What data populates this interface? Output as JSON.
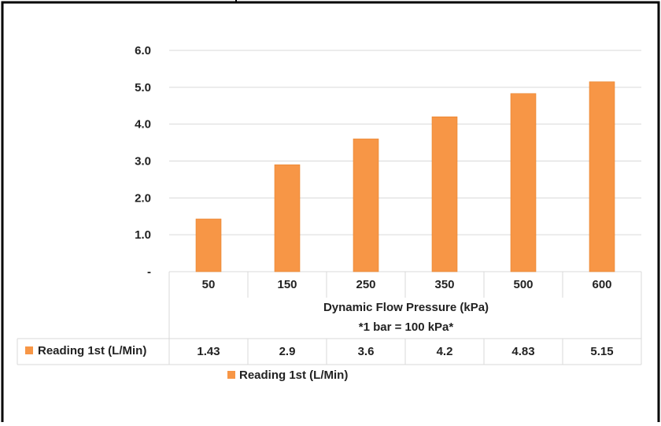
{
  "chart_data": {
    "type": "bar",
    "categories": [
      "50",
      "150",
      "250",
      "350",
      "500",
      "600"
    ],
    "series": [
      {
        "name": "Reading 1st (L/Min)",
        "values": [
          1.43,
          2.9,
          3.6,
          4.2,
          4.83,
          5.15
        ]
      }
    ],
    "data_table_values": [
      "1.43",
      "2.9",
      "3.6",
      "4.2",
      "4.83",
      "5.15"
    ],
    "xlabel": "Dynamic Flow Pressure (kPa)",
    "xlabel_note": "*1 bar = 100 kPa*",
    "ylabel": "",
    "ylim": [
      0,
      6
    ],
    "yticks": [
      "-",
      "1.0",
      "2.0",
      "3.0",
      "4.0",
      "5.0",
      "6.0"
    ],
    "legend": {
      "label": "Reading 1st (L/Min)",
      "position": "bottom"
    },
    "grid": true,
    "colors": {
      "bar": "#f79646",
      "grid": "#d9d9d9",
      "table_border": "#d9d9d9"
    }
  }
}
